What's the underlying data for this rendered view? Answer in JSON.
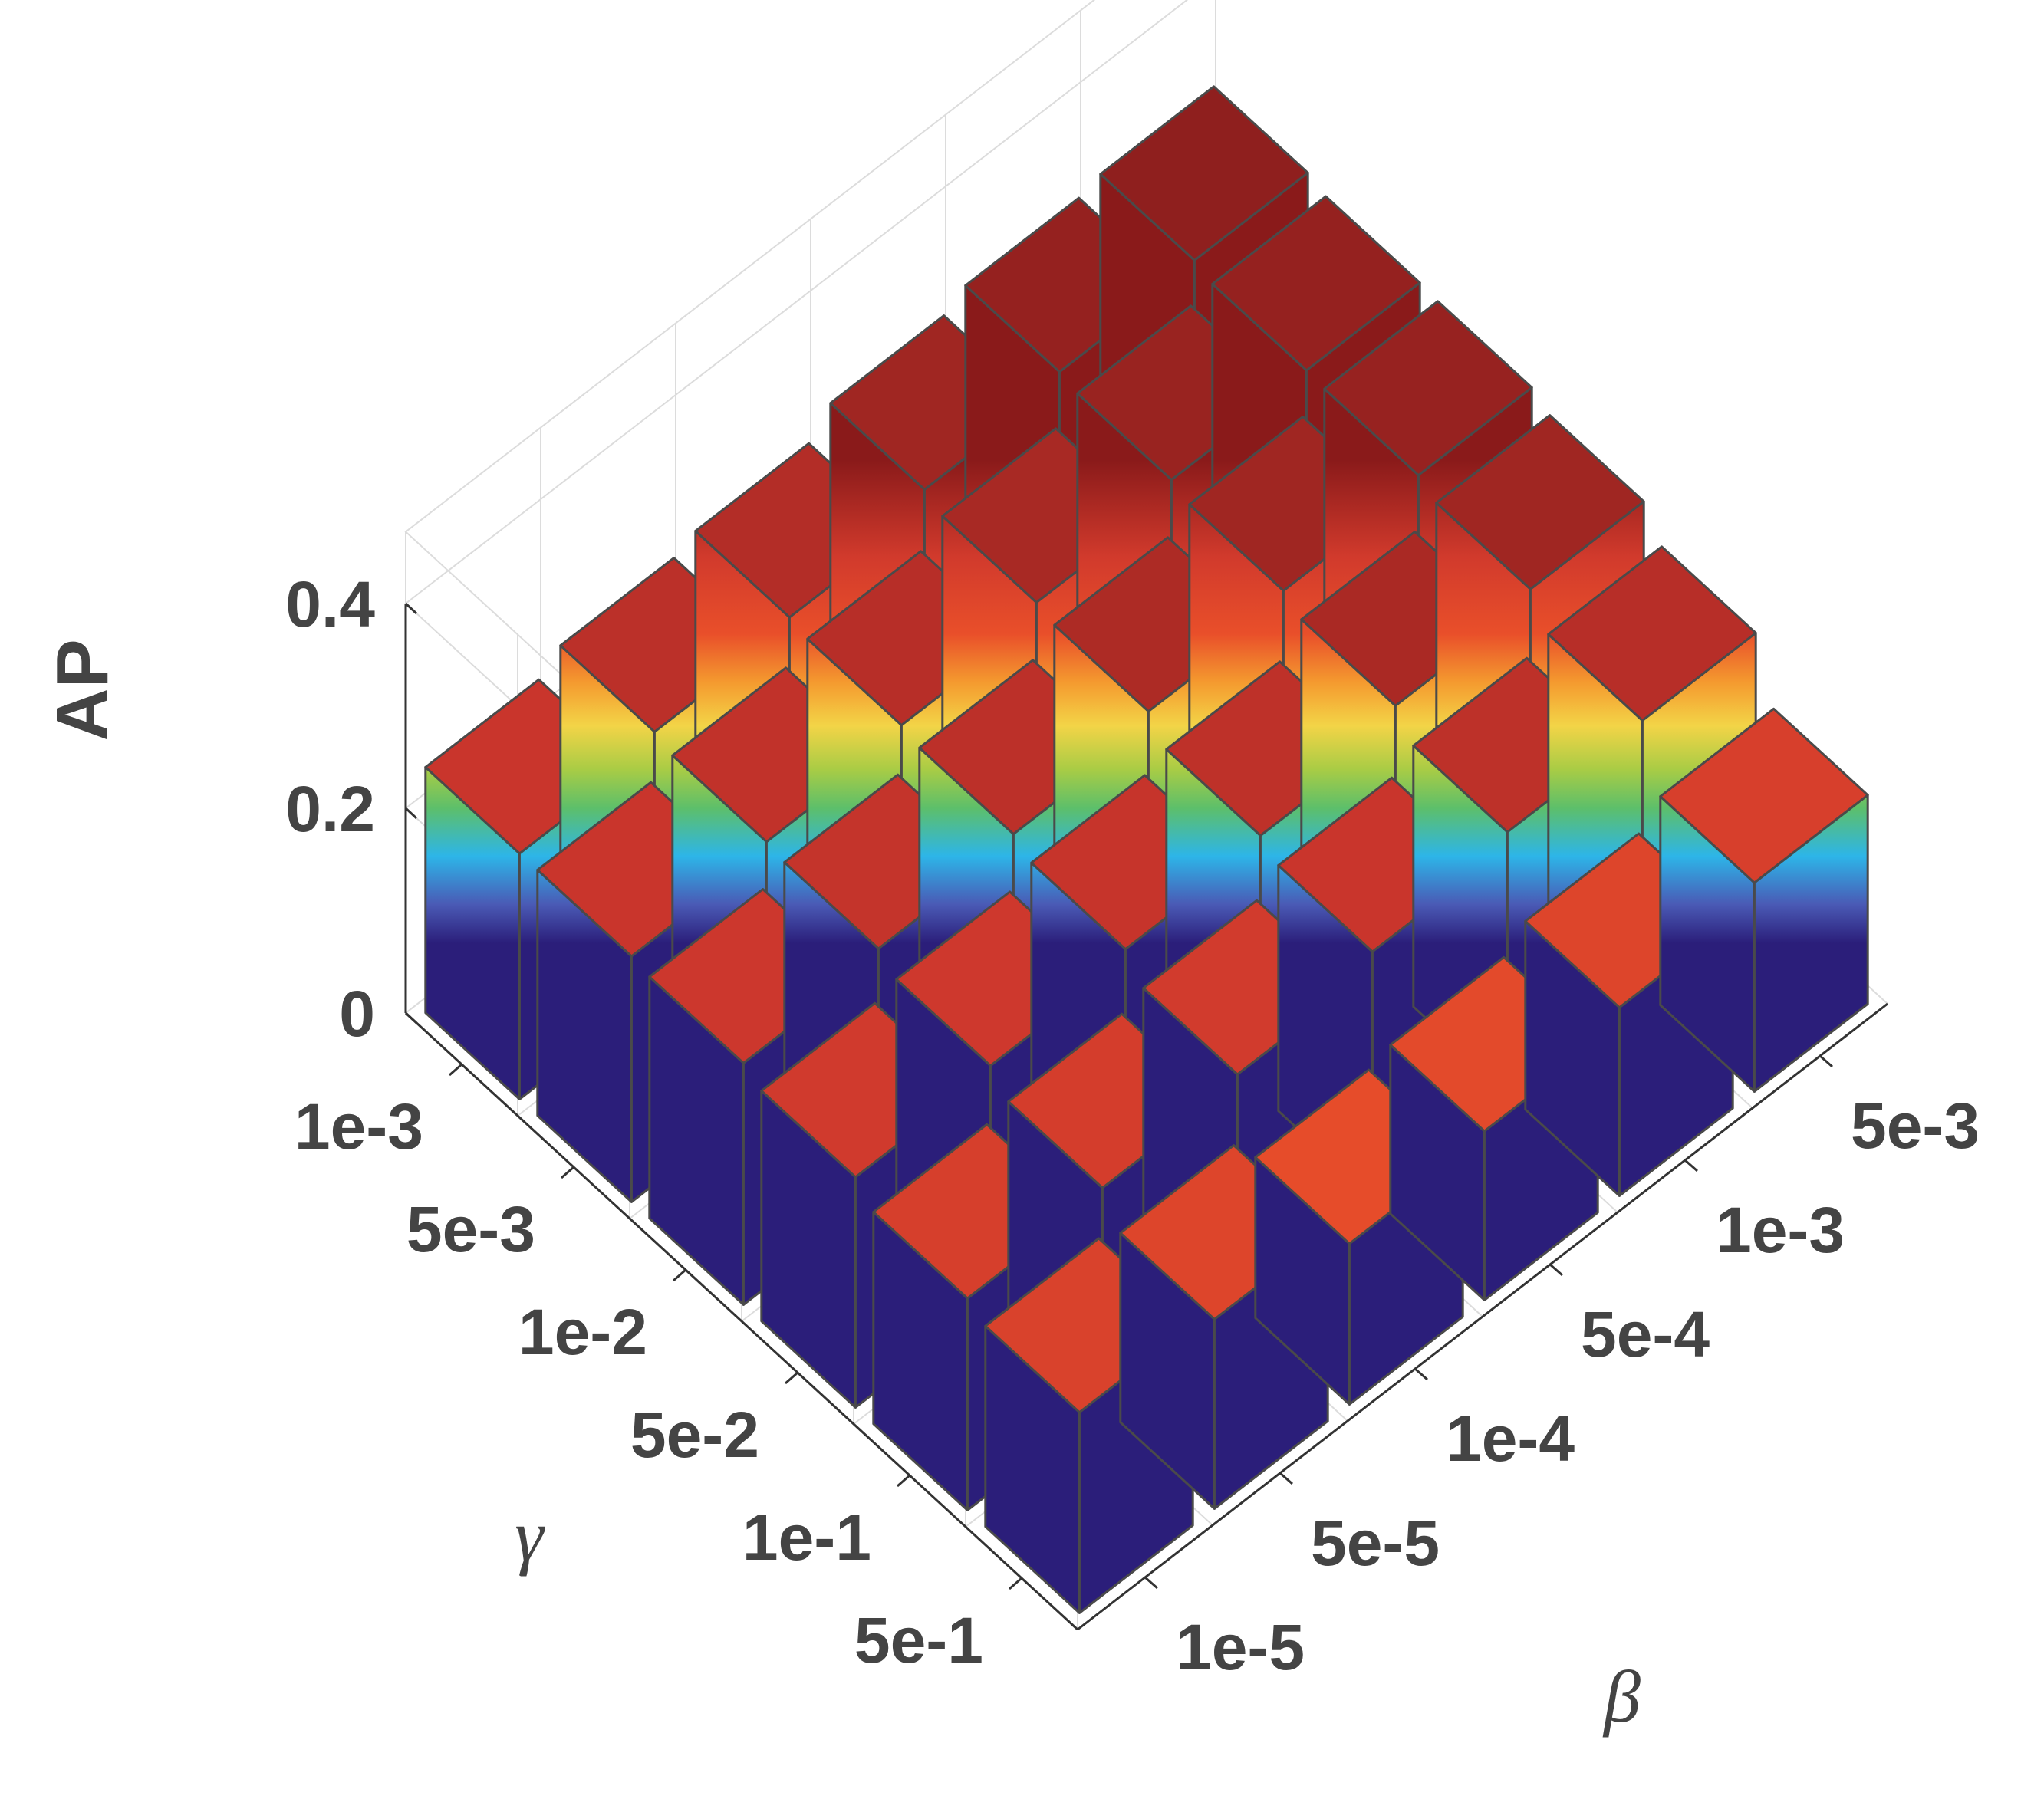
{
  "chart_data": {
    "type": "bar3d",
    "ylabel": "AP",
    "gamma_label": "γ",
    "beta_label": "β",
    "gamma_ticks": [
      "1e-3",
      "5e-3",
      "1e-2",
      "5e-2",
      "1e-1",
      "5e-1"
    ],
    "beta_ticks": [
      "1e-5",
      "5e-5",
      "1e-4",
      "5e-4",
      "1e-3",
      "5e-3"
    ],
    "z_ticks": [
      "0",
      "0.2",
      "0.4"
    ],
    "zlim": [
      0,
      0.4
    ],
    "grid": true,
    "colormap": "jet",
    "values": [
      [
        0.24,
        0.257,
        0.267,
        0.29,
        0.303,
        0.31
      ],
      [
        0.24,
        0.25,
        0.262,
        0.28,
        0.298,
        0.303
      ],
      [
        0.236,
        0.246,
        0.256,
        0.274,
        0.29,
        0.301
      ],
      [
        0.225,
        0.232,
        0.244,
        0.253,
        0.278,
        0.29
      ],
      [
        0.207,
        0.213,
        0.222,
        0.24,
        0.255,
        0.262
      ],
      [
        0.196,
        0.185,
        0.157,
        0.165,
        0.184,
        0.204
      ]
    ]
  }
}
